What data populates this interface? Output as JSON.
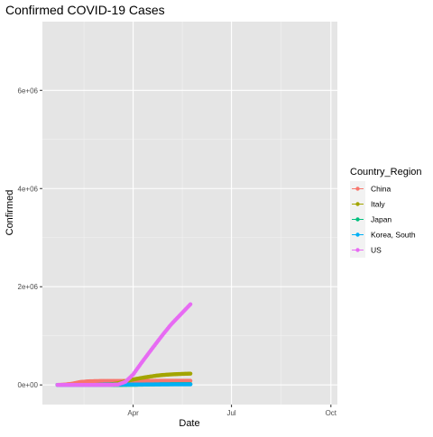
{
  "chart_data": {
    "type": "line",
    "title": "Confirmed COVID-19 Cases",
    "xlabel": "Date",
    "ylabel": "Confirmed",
    "x_ticks": [
      "Apr",
      "Jul",
      "Oct"
    ],
    "x_tick_dates": [
      "2020-04-01",
      "2020-07-01",
      "2020-10-01"
    ],
    "xlim": [
      "2020-01-08",
      "2020-10-07"
    ],
    "y_ticks": [
      0,
      2000000,
      4000000,
      6000000
    ],
    "y_tick_labels": [
      "0e+00",
      "2e+06",
      "4e+06",
      "6e+06"
    ],
    "ylim": [
      -400000,
      7400000
    ],
    "grid": true,
    "legend": {
      "title": "Country_Region",
      "position": "right"
    },
    "background": "#e5e5e5",
    "series": [
      {
        "name": "China",
        "color": "#F8766D",
        "points": [
          [
            "2020-01-22",
            548
          ],
          [
            "2020-01-29",
            7000
          ],
          [
            "2020-02-05",
            27000
          ],
          [
            "2020-02-12",
            59000
          ],
          [
            "2020-02-19",
            74000
          ],
          [
            "2020-02-26",
            78000
          ],
          [
            "2020-03-04",
            80300
          ],
          [
            "2020-03-11",
            80900
          ],
          [
            "2020-03-18",
            81100
          ],
          [
            "2020-03-25",
            81600
          ],
          [
            "2020-04-01",
            82300
          ],
          [
            "2020-04-08",
            82800
          ],
          [
            "2020-04-15",
            83300
          ],
          [
            "2020-04-22",
            83900
          ],
          [
            "2020-04-29",
            83900
          ],
          [
            "2020-05-06",
            83970
          ],
          [
            "2020-05-13",
            84020
          ],
          [
            "2020-05-20",
            84060
          ],
          [
            "2020-05-24",
            84080
          ]
        ]
      },
      {
        "name": "Italy",
        "color": "#A3A500",
        "points": [
          [
            "2020-01-22",
            0
          ],
          [
            "2020-02-19",
            3
          ],
          [
            "2020-02-26",
            453
          ],
          [
            "2020-03-04",
            3089
          ],
          [
            "2020-03-11",
            12462
          ],
          [
            "2020-03-18",
            35713
          ],
          [
            "2020-03-25",
            74386
          ],
          [
            "2020-04-01",
            110574
          ],
          [
            "2020-04-08",
            139422
          ],
          [
            "2020-04-15",
            165155
          ],
          [
            "2020-04-22",
            187327
          ],
          [
            "2020-04-29",
            203591
          ],
          [
            "2020-05-06",
            214457
          ],
          [
            "2020-05-13",
            222104
          ],
          [
            "2020-05-20",
            227364
          ],
          [
            "2020-05-24",
            229858
          ]
        ]
      },
      {
        "name": "Japan",
        "color": "#00BF7D",
        "points": [
          [
            "2020-01-22",
            2
          ],
          [
            "2020-02-19",
            84
          ],
          [
            "2020-03-04",
            293
          ],
          [
            "2020-03-18",
            889
          ],
          [
            "2020-04-01",
            2178
          ],
          [
            "2020-04-15",
            8100
          ],
          [
            "2020-04-29",
            14088
          ],
          [
            "2020-05-13",
            16079
          ],
          [
            "2020-05-24",
            16550
          ]
        ]
      },
      {
        "name": "Korea, South",
        "color": "#00B0F6",
        "points": [
          [
            "2020-01-22",
            1
          ],
          [
            "2020-02-19",
            51
          ],
          [
            "2020-02-26",
            1261
          ],
          [
            "2020-03-04",
            5621
          ],
          [
            "2020-03-11",
            7755
          ],
          [
            "2020-03-18",
            8413
          ],
          [
            "2020-04-01",
            9887
          ],
          [
            "2020-04-15",
            10591
          ],
          [
            "2020-05-01",
            10774
          ],
          [
            "2020-05-24",
            11190
          ]
        ]
      },
      {
        "name": "US",
        "color": "#E76BF3",
        "points": [
          [
            "2020-01-22",
            1
          ],
          [
            "2020-02-26",
            15
          ],
          [
            "2020-03-04",
            153
          ],
          [
            "2020-03-11",
            1281
          ],
          [
            "2020-03-18",
            7786
          ],
          [
            "2020-03-25",
            65778
          ],
          [
            "2020-04-01",
            213372
          ],
          [
            "2020-04-08",
            429052
          ],
          [
            "2020-04-15",
            636350
          ],
          [
            "2020-04-22",
            839675
          ],
          [
            "2020-04-29",
            1039909
          ],
          [
            "2020-05-06",
            1228603
          ],
          [
            "2020-05-13",
            1390406
          ],
          [
            "2020-05-20",
            1551853
          ],
          [
            "2020-05-24",
            1643246
          ]
        ]
      }
    ]
  }
}
